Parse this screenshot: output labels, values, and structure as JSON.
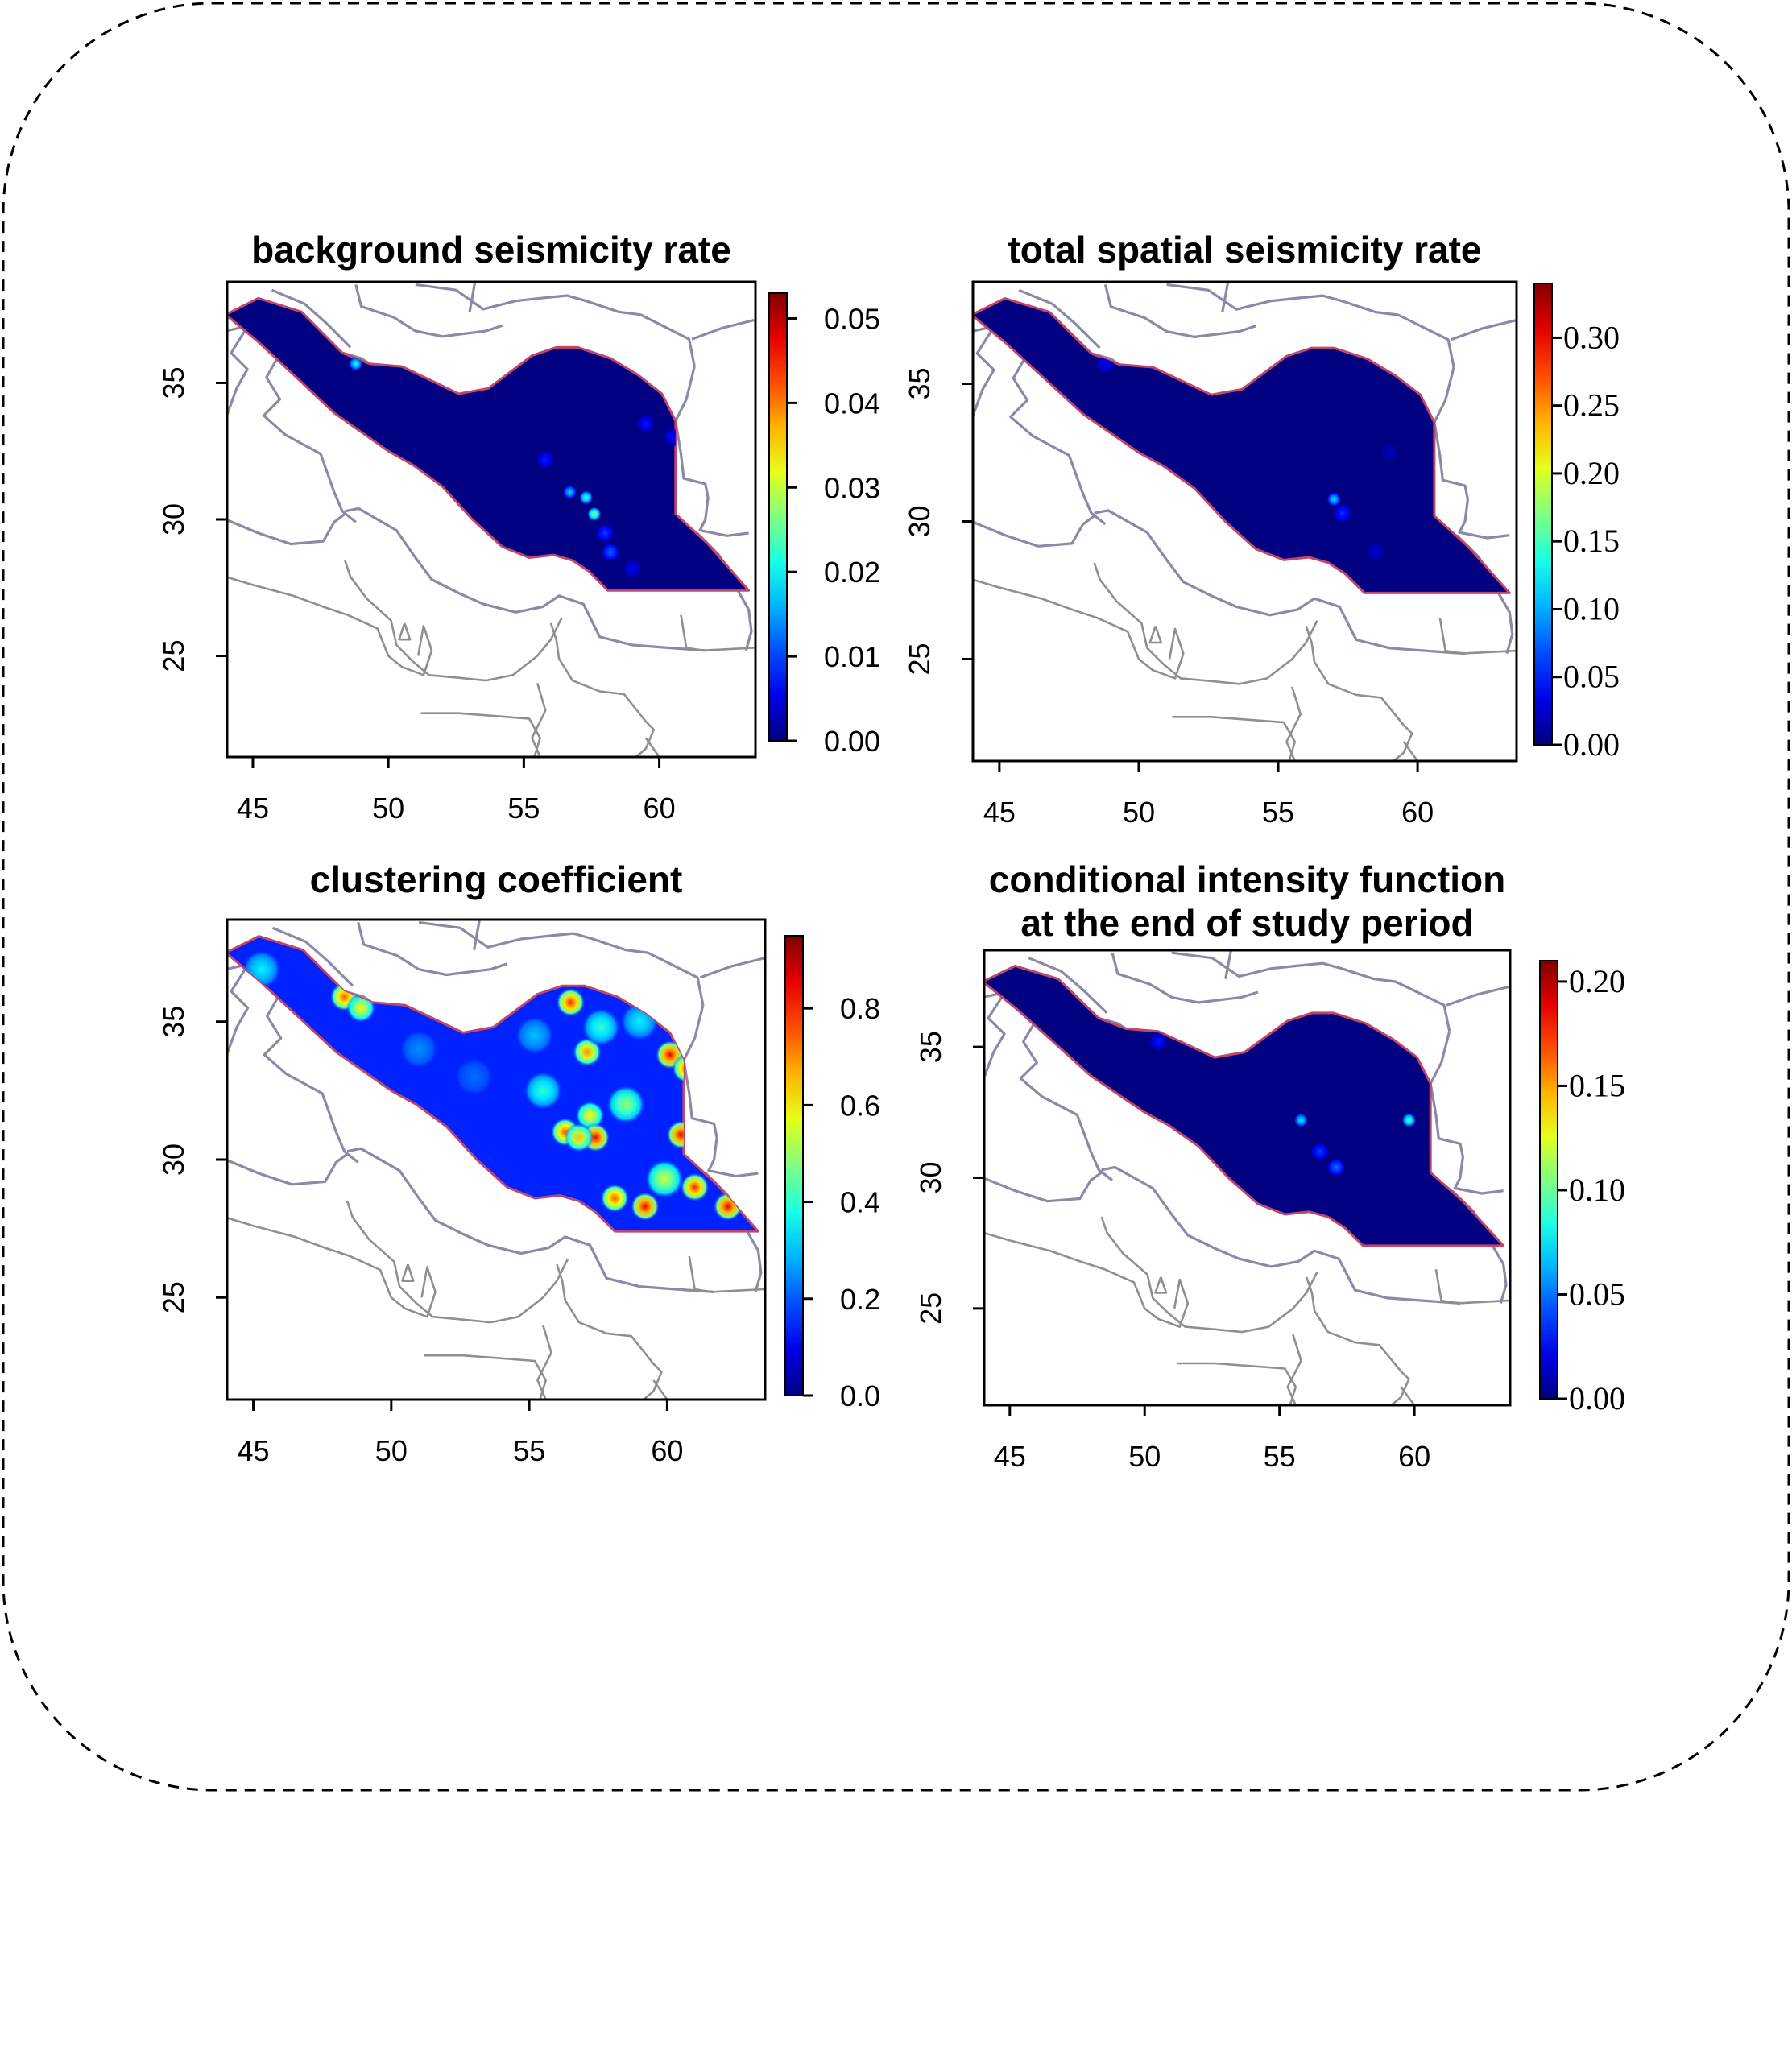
{
  "panels": [
    {
      "id": "background",
      "title_lines": [
        "background seismicity rate"
      ],
      "x_ticks": [
        45,
        50,
        55,
        60
      ],
      "y_ticks": [
        25,
        30,
        35
      ],
      "colorbar": {
        "min": 0,
        "max": 0.053,
        "ticks": [
          "0.00",
          "0.01",
          "0.02",
          "0.03",
          "0.04",
          "0.05"
        ],
        "tick_values": [
          0,
          0.01,
          0.02,
          0.03,
          0.04,
          0.05
        ],
        "font": "sans"
      },
      "hotspots": [
        {
          "lon": 48.8,
          "lat": 35.7,
          "value": 0.022
        },
        {
          "lon": 56.7,
          "lat": 31.0,
          "value": 0.018
        },
        {
          "lon": 57.3,
          "lat": 30.8,
          "value": 0.024
        },
        {
          "lon": 57.6,
          "lat": 30.2,
          "value": 0.028
        },
        {
          "lon": 58.0,
          "lat": 29.5,
          "value": 0.01
        },
        {
          "lon": 58.2,
          "lat": 28.8,
          "value": 0.012
        },
        {
          "lon": 55.8,
          "lat": 32.2,
          "value": 0.008
        },
        {
          "lon": 59.5,
          "lat": 33.5,
          "value": 0.008
        },
        {
          "lon": 60.5,
          "lat": 33.0,
          "value": 0.007
        },
        {
          "lon": 59.0,
          "lat": 28.2,
          "value": 0.006
        }
      ]
    },
    {
      "id": "total",
      "title_lines": [
        "total spatial seismicity rate"
      ],
      "x_ticks": [
        45,
        50,
        55,
        60
      ],
      "y_ticks": [
        25,
        30,
        35
      ],
      "colorbar": {
        "min": 0,
        "max": 0.34,
        "ticks": [
          "0.00",
          "0.05",
          "0.10",
          "0.15",
          "0.20",
          "0.25",
          "0.30"
        ],
        "tick_values": [
          0,
          0.05,
          0.1,
          0.15,
          0.2,
          0.25,
          0.3
        ],
        "font": "serif"
      },
      "hotspots": [
        {
          "lon": 57.0,
          "lat": 30.8,
          "value": 0.12
        },
        {
          "lon": 57.3,
          "lat": 30.3,
          "value": 0.06
        },
        {
          "lon": 48.8,
          "lat": 35.7,
          "value": 0.04
        },
        {
          "lon": 58.5,
          "lat": 28.9,
          "value": 0.03
        },
        {
          "lon": 59.0,
          "lat": 32.5,
          "value": 0.02
        }
      ]
    },
    {
      "id": "clustering",
      "title_lines": [
        "clustering coefficient"
      ],
      "x_ticks": [
        45,
        50,
        55,
        60
      ],
      "y_ticks": [
        25,
        30,
        35
      ],
      "colorbar": {
        "min": 0,
        "max": 0.95,
        "ticks": [
          "0.0",
          "0.2",
          "0.4",
          "0.6",
          "0.8"
        ],
        "tick_values": [
          0,
          0.2,
          0.4,
          0.6,
          0.8
        ],
        "font": "sans"
      },
      "base_value": 0.15,
      "hotspots": [
        {
          "lon": 45.3,
          "lat": 36.9,
          "value": 0.35
        },
        {
          "lon": 48.3,
          "lat": 35.9,
          "value": 0.75
        },
        {
          "lon": 48.9,
          "lat": 35.5,
          "value": 0.6
        },
        {
          "lon": 56.5,
          "lat": 35.7,
          "value": 0.8
        },
        {
          "lon": 57.1,
          "lat": 33.9,
          "value": 0.7
        },
        {
          "lon": 58.5,
          "lat": 32.0,
          "value": 0.5
        },
        {
          "lon": 56.3,
          "lat": 31.0,
          "value": 0.75
        },
        {
          "lon": 57.2,
          "lat": 31.6,
          "value": 0.6
        },
        {
          "lon": 57.4,
          "lat": 30.8,
          "value": 0.85
        },
        {
          "lon": 56.8,
          "lat": 30.8,
          "value": 0.65
        },
        {
          "lon": 60.1,
          "lat": 33.8,
          "value": 0.85
        },
        {
          "lon": 60.7,
          "lat": 33.3,
          "value": 0.75
        },
        {
          "lon": 60.5,
          "lat": 30.9,
          "value": 0.85
        },
        {
          "lon": 59.9,
          "lat": 29.3,
          "value": 0.55
        },
        {
          "lon": 58.1,
          "lat": 28.6,
          "value": 0.75
        },
        {
          "lon": 59.2,
          "lat": 28.3,
          "value": 0.85
        },
        {
          "lon": 61.0,
          "lat": 29.0,
          "value": 0.8
        },
        {
          "lon": 62.2,
          "lat": 28.3,
          "value": 0.85
        },
        {
          "lon": 55.2,
          "lat": 34.5,
          "value": 0.3
        },
        {
          "lon": 53.0,
          "lat": 33.0,
          "value": 0.22
        },
        {
          "lon": 51.0,
          "lat": 34.0,
          "value": 0.25
        },
        {
          "lon": 57.6,
          "lat": 34.8,
          "value": 0.4
        },
        {
          "lon": 59.0,
          "lat": 35.0,
          "value": 0.35
        },
        {
          "lon": 55.5,
          "lat": 32.5,
          "value": 0.4
        }
      ]
    },
    {
      "id": "conditional",
      "title_lines": [
        "conditional intensity function",
        "at the end of study period"
      ],
      "x_ticks": [
        45,
        50,
        55,
        60
      ],
      "y_ticks": [
        25,
        30,
        35
      ],
      "colorbar": {
        "min": 0,
        "max": 0.21,
        "ticks": [
          "0.00",
          "0.05",
          "0.10",
          "0.15",
          "0.20"
        ],
        "tick_values": [
          0,
          0.05,
          0.1,
          0.15,
          0.2
        ],
        "font": "serif"
      },
      "hotspots": [
        {
          "lon": 55.8,
          "lat": 32.2,
          "value": 0.08
        },
        {
          "lon": 59.8,
          "lat": 32.2,
          "value": 0.1
        },
        {
          "lon": 57.1,
          "lat": 30.4,
          "value": 0.05
        },
        {
          "lon": 56.5,
          "lat": 31.0,
          "value": 0.04
        },
        {
          "lon": 50.5,
          "lat": 35.2,
          "value": 0.03
        }
      ]
    }
  ]
}
